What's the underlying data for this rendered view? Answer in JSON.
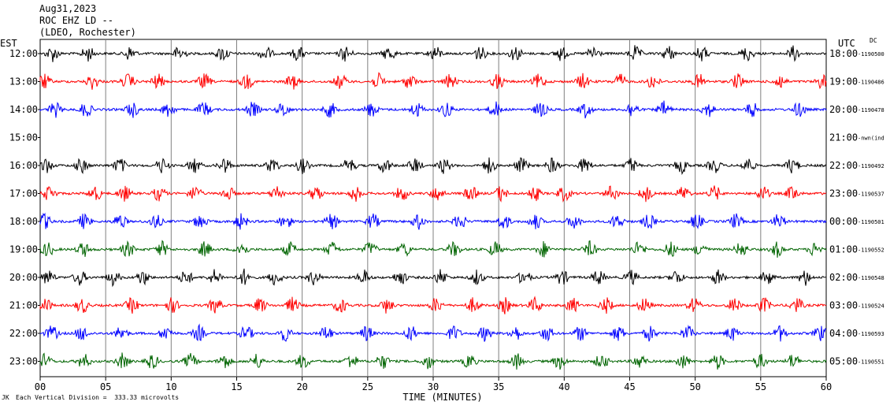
{
  "header": {
    "date": "Aug31,2023",
    "station": "ROC EHZ LD --",
    "network": "(LDEO, Rochester)"
  },
  "left_axis_title": "EST",
  "right_axis_title": "UTC",
  "right_axis_note": "DC",
  "footer": {
    "scale_text": "Each Vertical Division =  333.33 microvolts",
    "corner_mark": "JK"
  },
  "colors": {
    "black": "#000000",
    "red": "#ff0000",
    "blue": "#0000ff",
    "green": "#006400",
    "grid": "#808080"
  },
  "chart_data": {
    "type": "line",
    "title": "",
    "xlabel": "TIME (MINUTES)",
    "ylabel": "",
    "xlim": [
      0,
      60
    ],
    "x_ticks": [
      "00",
      "05",
      "10",
      "15",
      "20",
      "25",
      "30",
      "35",
      "40",
      "45",
      "50",
      "55",
      "60"
    ],
    "grid": true,
    "rows": [
      {
        "est": "12:00",
        "utc": "18:00",
        "offset": "-1190500",
        "color": "black",
        "end_minute": 60
      },
      {
        "est": "13:00",
        "utc": "19:00",
        "offset": "-1190486",
        "color": "red",
        "end_minute": 60
      },
      {
        "est": "14:00",
        "utc": "20:00",
        "offset": "-1190478",
        "color": "blue",
        "end_minute": 60
      },
      {
        "est": "15:00",
        "utc": "21:00",
        "offset": "-nwn(ind",
        "color": "green",
        "end_minute": 0
      },
      {
        "est": "16:00",
        "utc": "22:00",
        "offset": "-1190492",
        "color": "black",
        "end_minute": 60
      },
      {
        "est": "17:00",
        "utc": "23:00",
        "offset": "-1190537",
        "color": "red",
        "end_minute": 60
      },
      {
        "est": "18:00",
        "utc": "00:00",
        "offset": "-1190501",
        "color": "blue",
        "end_minute": 60
      },
      {
        "est": "19:00",
        "utc": "01:00",
        "offset": "-1190552",
        "color": "green",
        "end_minute": 60
      },
      {
        "est": "20:00",
        "utc": "02:00",
        "offset": "-1190548",
        "color": "black",
        "end_minute": 60
      },
      {
        "est": "21:00",
        "utc": "03:00",
        "offset": "-1190524",
        "color": "red",
        "end_minute": 60
      },
      {
        "est": "22:00",
        "utc": "04:00",
        "offset": "-1190593",
        "color": "blue",
        "end_minute": 60
      },
      {
        "est": "23:00",
        "utc": "05:00",
        "offset": "-1190551",
        "color": "green",
        "end_minute": 60
      }
    ]
  }
}
